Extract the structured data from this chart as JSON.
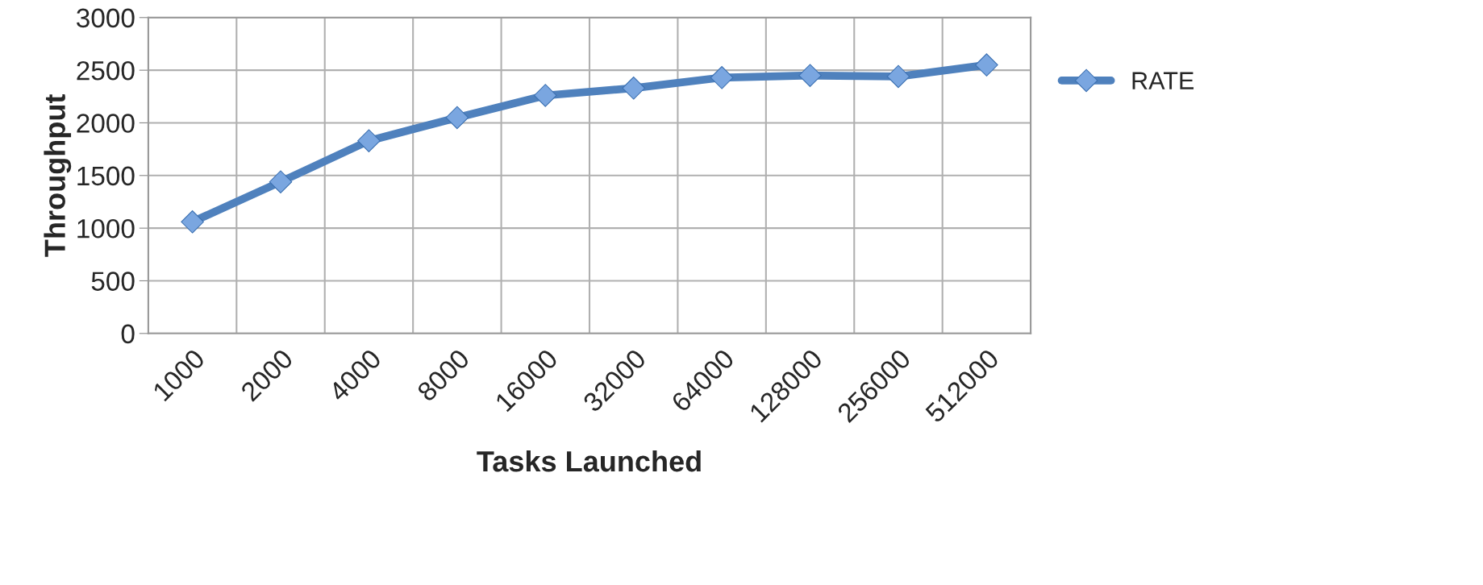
{
  "chart_data": {
    "type": "line",
    "xlabel": "Tasks Launched",
    "ylabel": "Throughput",
    "categories": [
      "1000",
      "2000",
      "4000",
      "8000",
      "16000",
      "32000",
      "64000",
      "128000",
      "256000",
      "512000"
    ],
    "series": [
      {
        "name": "RATE",
        "color": "#4f81bd",
        "values": [
          1060,
          1440,
          1830,
          2050,
          2260,
          2330,
          2430,
          2450,
          2440,
          2550
        ]
      }
    ],
    "ylim": [
      0,
      3000
    ],
    "yticks": [
      0,
      500,
      1000,
      1500,
      2000,
      2500,
      3000
    ],
    "grid": true,
    "legend": "right",
    "marker": "diamond",
    "line_style": "solid"
  }
}
